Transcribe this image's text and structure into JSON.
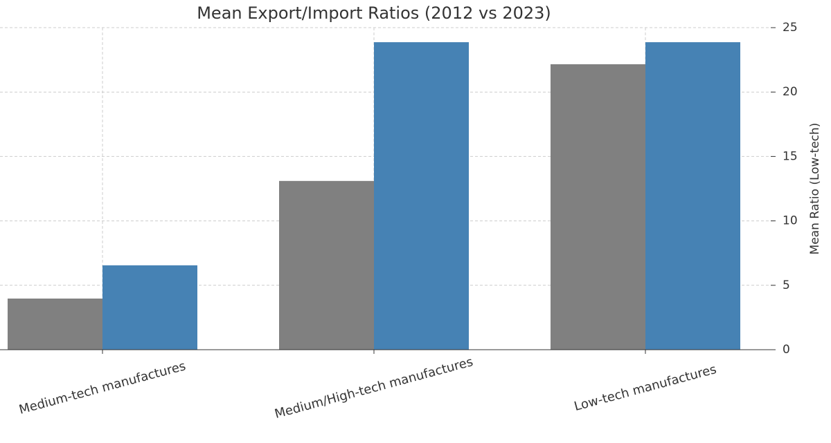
{
  "chart_data": {
    "type": "bar",
    "title": "Mean Export/Import Ratios (2012 vs 2023)",
    "y_label": "Mean Ratio (Low-tech)",
    "categories": [
      "Medium-tech manufactures",
      "Medium/High-tech manufactures",
      "Low-tech manufactures"
    ],
    "series": [
      {
        "color": "#808080",
        "values": [
          3.97,
          13.1,
          22.16
        ]
      },
      {
        "color": "#4682b4",
        "values": [
          6.55,
          23.87,
          23.87
        ]
      }
    ],
    "ylim": [
      0,
      25
    ],
    "yticks": [
      0,
      5,
      10,
      15,
      20,
      25
    ],
    "grid": true,
    "y_axis_side": "right"
  }
}
